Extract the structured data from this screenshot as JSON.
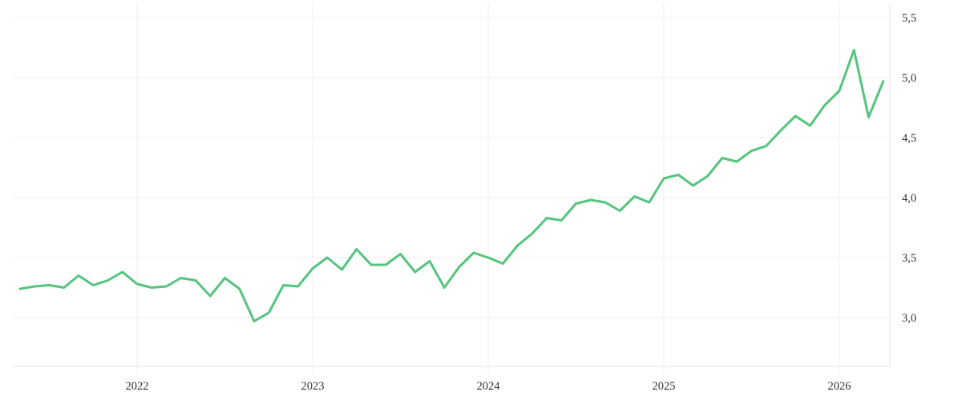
{
  "chart_data": {
    "type": "line",
    "title": "",
    "xlabel": "",
    "ylabel": "",
    "grid": true,
    "legend": false,
    "background_color": "#ffffff",
    "grid_color": "#ececec",
    "axis_border_color": "#e4e4e4",
    "tick_label_color": "#333333",
    "line_color": "#55c47d",
    "line_width": 3,
    "x_frequency": "monthly",
    "x": [
      "2021-05",
      "2021-06",
      "2021-07",
      "2021-08",
      "2021-09",
      "2021-10",
      "2021-11",
      "2021-12",
      "2022-01",
      "2022-02",
      "2022-03",
      "2022-04",
      "2022-05",
      "2022-06",
      "2022-07",
      "2022-08",
      "2022-09",
      "2022-10",
      "2022-11",
      "2022-12",
      "2023-01",
      "2023-02",
      "2023-03",
      "2023-04",
      "2023-05",
      "2023-06",
      "2023-07",
      "2023-08",
      "2023-09",
      "2023-10",
      "2023-11",
      "2023-12",
      "2024-01",
      "2024-02",
      "2024-03",
      "2024-04",
      "2024-05",
      "2024-06",
      "2024-07",
      "2024-08",
      "2024-09",
      "2024-10",
      "2024-11",
      "2024-12",
      "2025-01",
      "2025-02",
      "2025-03",
      "2025-04",
      "2025-05",
      "2025-06",
      "2025-07",
      "2025-08",
      "2025-09",
      "2025-10",
      "2025-11",
      "2025-12",
      "2026-01",
      "2026-02",
      "2026-03",
      "2026-04"
    ],
    "values": [
      3.24,
      3.26,
      3.27,
      3.25,
      3.35,
      3.27,
      3.31,
      3.38,
      3.28,
      3.25,
      3.26,
      3.33,
      3.31,
      3.18,
      3.33,
      3.24,
      2.97,
      3.04,
      3.27,
      3.26,
      3.41,
      3.5,
      3.4,
      3.57,
      3.44,
      3.44,
      3.53,
      3.38,
      3.47,
      3.25,
      3.42,
      3.54,
      3.5,
      3.45,
      3.6,
      3.7,
      3.83,
      3.81,
      3.95,
      3.98,
      3.96,
      3.89,
      4.01,
      3.96,
      4.16,
      4.19,
      4.1,
      4.18,
      4.33,
      4.3,
      4.39,
      4.43,
      4.56,
      4.68,
      4.6,
      4.77,
      4.89,
      5.23,
      4.67,
      4.97
    ],
    "y_ticks": [
      {
        "value": 5.5,
        "label": "5,5"
      },
      {
        "value": 5.0,
        "label": "5,0"
      },
      {
        "value": 4.5,
        "label": "4,5"
      },
      {
        "value": 4.0,
        "label": "4,0"
      },
      {
        "value": 3.5,
        "label": "3,5"
      },
      {
        "value": 3.0,
        "label": "3,0"
      }
    ],
    "x_ticks": [
      {
        "month": "2022-01",
        "label": "2022"
      },
      {
        "month": "2023-01",
        "label": "2023"
      },
      {
        "month": "2024-01",
        "label": "2024"
      },
      {
        "month": "2025-01",
        "label": "2025"
      },
      {
        "month": "2026-01",
        "label": "2026"
      }
    ],
    "ylim": [
      2.6,
      5.6
    ],
    "legend_position": "none"
  }
}
